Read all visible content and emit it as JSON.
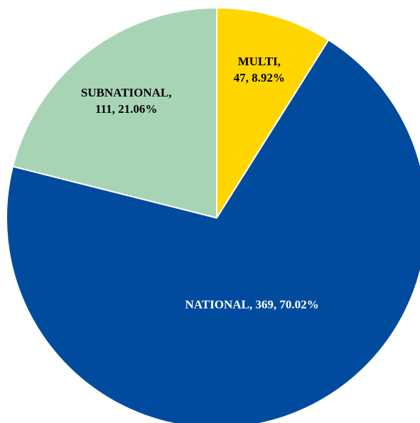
{
  "chart_data": {
    "type": "pie",
    "title": "",
    "start_angle_deg": 0,
    "direction": "clockwise",
    "slices": [
      {
        "name": "MULTI",
        "value": 47,
        "percent": 8.92,
        "color": "#ffd600",
        "label_lines": [
          "MULTI,",
          "47, 8.92%"
        ],
        "label_color": "#000000"
      },
      {
        "name": "NATIONAL",
        "value": 369,
        "percent": 70.02,
        "color": "#004b9d",
        "label_lines": [
          "NATIONAL, 369, 70.02%"
        ],
        "label_color": "#ffffff"
      },
      {
        "name": "SUBNATIONAL",
        "value": 111,
        "percent": 21.06,
        "color": "#a8d4b6",
        "label_lines": [
          "SUBNATIONAL,",
          "111, 21.06%"
        ],
        "label_color": "#000000"
      }
    ],
    "slice_border_color": "#ffffff",
    "legend": "none"
  }
}
